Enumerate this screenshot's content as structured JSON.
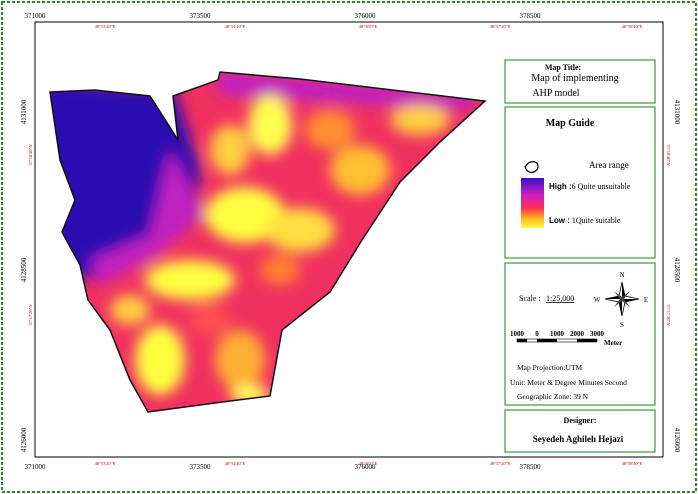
{
  "frame": {
    "top_labels": [
      "371000",
      "373500",
      "376000",
      "378500"
    ],
    "bottom_labels": [
      "371000",
      "373500",
      "376000",
      "378500"
    ],
    "left_labels": [
      "4131000",
      "4128500",
      "4126000"
    ],
    "right_labels": [
      "4131000",
      "4128500",
      "4126000"
    ],
    "top_degrees": [
      "48°53'20\"E",
      "48°54'40\"E",
      "48°56'0\"E",
      "48°57'20\"E",
      "48°58'40\"E"
    ],
    "bottom_degrees": [
      "48°53'20\"E",
      "48°54'40\"E",
      "48°56'0\"E",
      "48°57'20\"E",
      "48°58'40\"E"
    ],
    "left_degrees": [
      "37°18'40\"N",
      "37°17'20\"N"
    ],
    "right_degrees": [
      "37°18'40\"N",
      "37°17'20\"N"
    ]
  },
  "title_box": {
    "heading": "Map Title:",
    "lines": [
      "Map of  implementing",
      "AHP model"
    ]
  },
  "legend": {
    "title": "Map Guide",
    "label": "Area range",
    "high_key": "High :",
    "high_value": "6 Quite unsuitable",
    "low_key": "Low :",
    "low_value": " 1Quite suitable"
  },
  "scale": {
    "label": "Scale :",
    "value": "1:25,000",
    "bar_labels": [
      "1000",
      "0",
      "1000",
      "2000",
      "3000"
    ],
    "unit": "Meter"
  },
  "compass": {
    "n": "N",
    "s": "S",
    "e": "E",
    "w": "W"
  },
  "projection": [
    "Map Projection:UTM",
    "Unit: Meter & Degree Minutes Second",
    "Geographic Zone: 39 N"
  ],
  "designer": {
    "heading": "Designer:",
    "name": "Seyedeh Aghileh Hejazi"
  }
}
